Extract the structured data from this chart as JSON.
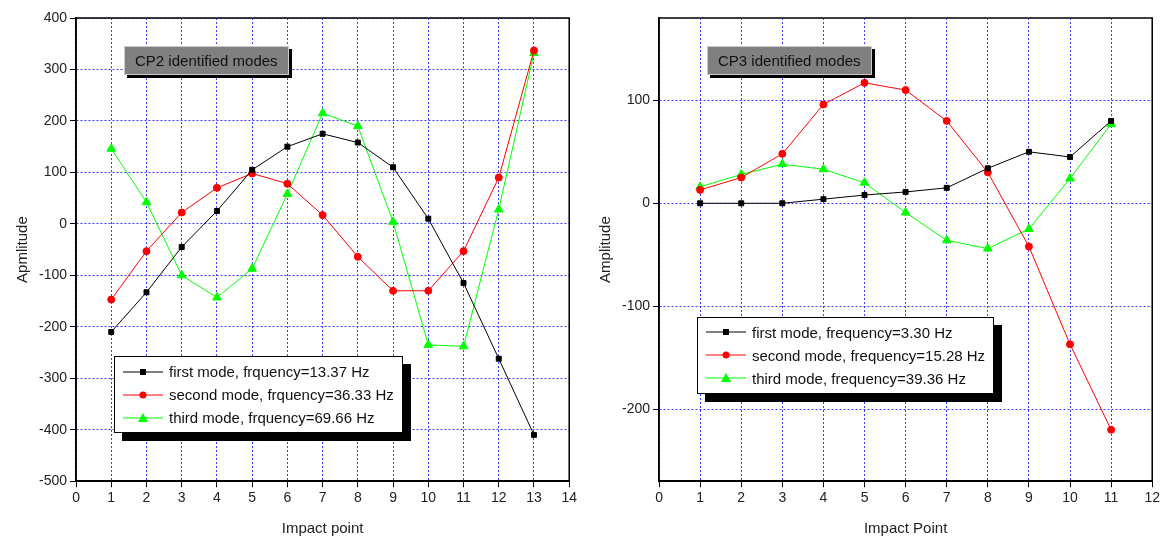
{
  "chart_data": [
    {
      "type": "line",
      "title": "CP2 identified modes",
      "xlabel": "Impact point",
      "ylabel": "Apmlitude",
      "x": [
        1,
        2,
        3,
        4,
        5,
        6,
        7,
        8,
        9,
        10,
        11,
        12,
        13
      ],
      "series": [
        {
          "name": "first mode, frquency=13.37 Hz",
          "color": "#000000",
          "marker": "square",
          "values": [
            -210,
            -133,
            -45,
            25,
            105,
            150,
            175,
            158,
            110,
            10,
            -115,
            -262,
            -410
          ]
        },
        {
          "name": "second mode, frquency=36.33 Hz",
          "color": "#ff0000",
          "marker": "circle",
          "values": [
            -147,
            -53,
            22,
            70,
            98,
            78,
            17,
            -64,
            -130,
            -130,
            -53,
            90,
            337
          ]
        },
        {
          "name": "third mode, frquency=69.66 Hz",
          "color": "#00ff00",
          "marker": "triangle",
          "values": [
            146,
            42,
            -100,
            -143,
            -87,
            58,
            215,
            190,
            4,
            -235,
            -238,
            28,
            332
          ]
        }
      ],
      "xlim": [
        0,
        14
      ],
      "xticks": [
        0,
        1,
        2,
        3,
        4,
        5,
        6,
        7,
        8,
        9,
        10,
        11,
        12,
        13,
        14
      ],
      "ylim": [
        -500,
        400
      ],
      "yticks": [
        -500,
        -400,
        -300,
        -200,
        -100,
        0,
        100,
        200,
        300,
        400
      ],
      "grid": true,
      "legend": "bottom left"
    },
    {
      "type": "line",
      "title": "CP3 identified modes",
      "xlabel": "Impact Point",
      "ylabel": "Amplitude",
      "x": [
        1,
        2,
        3,
        4,
        5,
        6,
        7,
        8,
        9,
        10,
        11
      ],
      "series": [
        {
          "name": "first mode, frequency=3.30 Hz",
          "color": "#000000",
          "marker": "square",
          "values": [
            0,
            0,
            0,
            4,
            8,
            11,
            15,
            34,
            50,
            45,
            80
          ]
        },
        {
          "name": "second mode, frequency=15.28 Hz",
          "color": "#ff0000",
          "marker": "circle",
          "values": [
            13,
            25,
            48,
            96,
            117,
            110,
            80,
            30,
            -42,
            -137,
            -220
          ]
        },
        {
          "name": "third mode, frequency=39.36 Hz",
          "color": "#00ff00",
          "marker": "triangle",
          "values": [
            16,
            28,
            38,
            33,
            20,
            -9,
            -36,
            -44,
            -25,
            24,
            77
          ]
        }
      ],
      "xlim": [
        0,
        12
      ],
      "xticks": [
        0,
        1,
        2,
        3,
        4,
        5,
        6,
        7,
        8,
        9,
        10,
        11,
        12
      ],
      "ylim": [
        -270,
        180
      ],
      "yticks": [
        -200,
        -100,
        0,
        100
      ],
      "grid": true,
      "legend": "bottom left"
    }
  ]
}
